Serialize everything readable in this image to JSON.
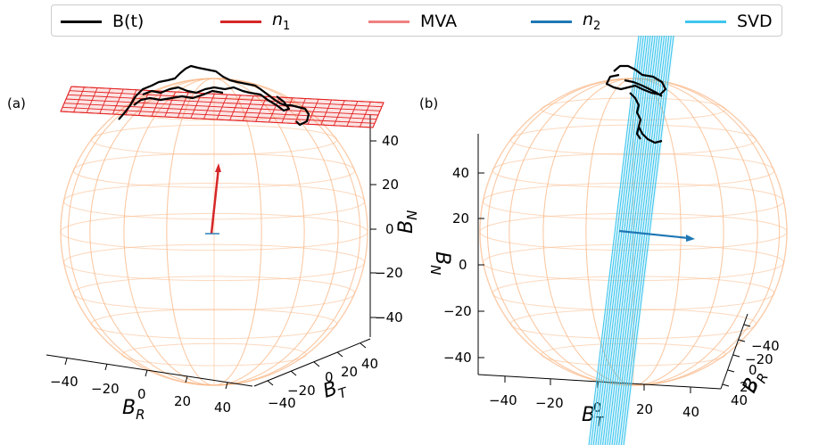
{
  "legend": {
    "items": [
      {
        "label": "B(t)",
        "sub": "",
        "italic": false,
        "color": "#000000"
      },
      {
        "label": "n",
        "sub": "1",
        "italic": true,
        "color": "#d62728"
      },
      {
        "label": "MVA",
        "sub": "",
        "italic": false,
        "color": "#f08080"
      },
      {
        "label": "n",
        "sub": "2",
        "italic": true,
        "color": "#1f77b4"
      },
      {
        "label": "SVD",
        "sub": "",
        "italic": false,
        "color": "#3ec6ee"
      }
    ]
  },
  "panels": {
    "a": {
      "label": "(a)"
    },
    "b": {
      "label": "(b)"
    }
  },
  "chart_data": [
    {
      "type": "3d-sphere",
      "panel": "(a)",
      "sphere_color": "#f9b98a",
      "axes": {
        "x": {
          "label": "B",
          "sub": "R",
          "ticks": [
            "−40",
            "−20",
            "0",
            "20",
            "40"
          ]
        },
        "y": {
          "label": "B",
          "sub": "T",
          "ticks": [
            "−40",
            "−20",
            "0",
            "20",
            "40"
          ]
        },
        "z": {
          "label": "B",
          "sub": "N",
          "ticks": [
            "40",
            "20",
            "0",
            "−20",
            "−40"
          ]
        },
        "range": [
          -50,
          50
        ]
      },
      "plane": {
        "name": "MVA",
        "color": "#e32020"
      },
      "vector": {
        "name": "n1",
        "color": "#d62728"
      }
    },
    {
      "type": "3d-sphere",
      "panel": "(b)",
      "sphere_color": "#f9b98a",
      "axes": {
        "x": {
          "label": "B",
          "sub": "T",
          "ticks": [
            "−40",
            "−20",
            "0",
            "20",
            "40"
          ]
        },
        "y": {
          "label": "B",
          "sub": "R",
          "ticks": [
            "−40",
            "−20",
            "0",
            "20",
            "40"
          ]
        },
        "z": {
          "label": "B",
          "sub": "N",
          "ticks": [
            "40",
            "20",
            "0",
            "−20",
            "−40"
          ]
        },
        "range": [
          -50,
          50
        ]
      },
      "plane": {
        "name": "SVD",
        "color": "#3ec6ee"
      },
      "vector": {
        "name": "n2",
        "color": "#1f77b4"
      }
    }
  ]
}
